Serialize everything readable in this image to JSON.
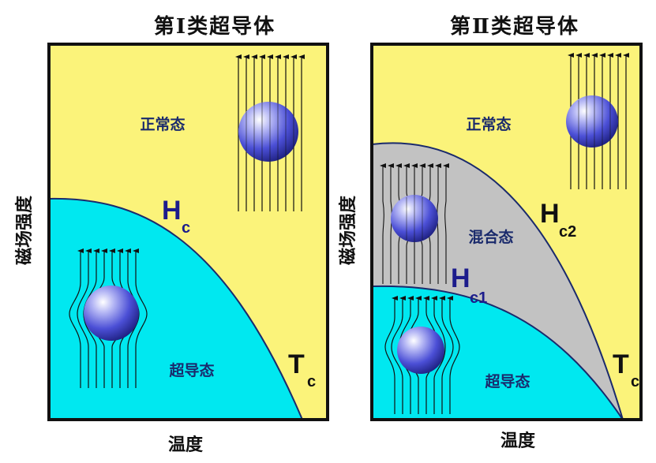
{
  "left_panel": {
    "title": "第Ⅰ类超导体",
    "normal_state": "正常态",
    "super_state": "超导态",
    "hc_main": "H",
    "hc_sub": "c",
    "tc_main": "T",
    "tc_sub": "c",
    "y_axis": "磁场强度",
    "x_axis": "温度"
  },
  "right_panel": {
    "title": "第Ⅱ类超导体",
    "normal_state": "正常态",
    "mixed_state": "混合态",
    "super_state": "超导态",
    "hc2_main": "H",
    "hc2_sub": "c2",
    "hc1_main": "H",
    "hc1_sub": "c1",
    "tc_main": "T",
    "tc_sub": "c",
    "y_axis": "磁场强度",
    "x_axis": "温度"
  },
  "colors": {
    "normal": "#fbf37a",
    "superconducting": "#00e8f0",
    "mixed": "#c2c2c2",
    "sphere": "#4b4fd6",
    "label_dark_blue": "#1a2a6c",
    "hc_blue": "#1c1c8c"
  }
}
